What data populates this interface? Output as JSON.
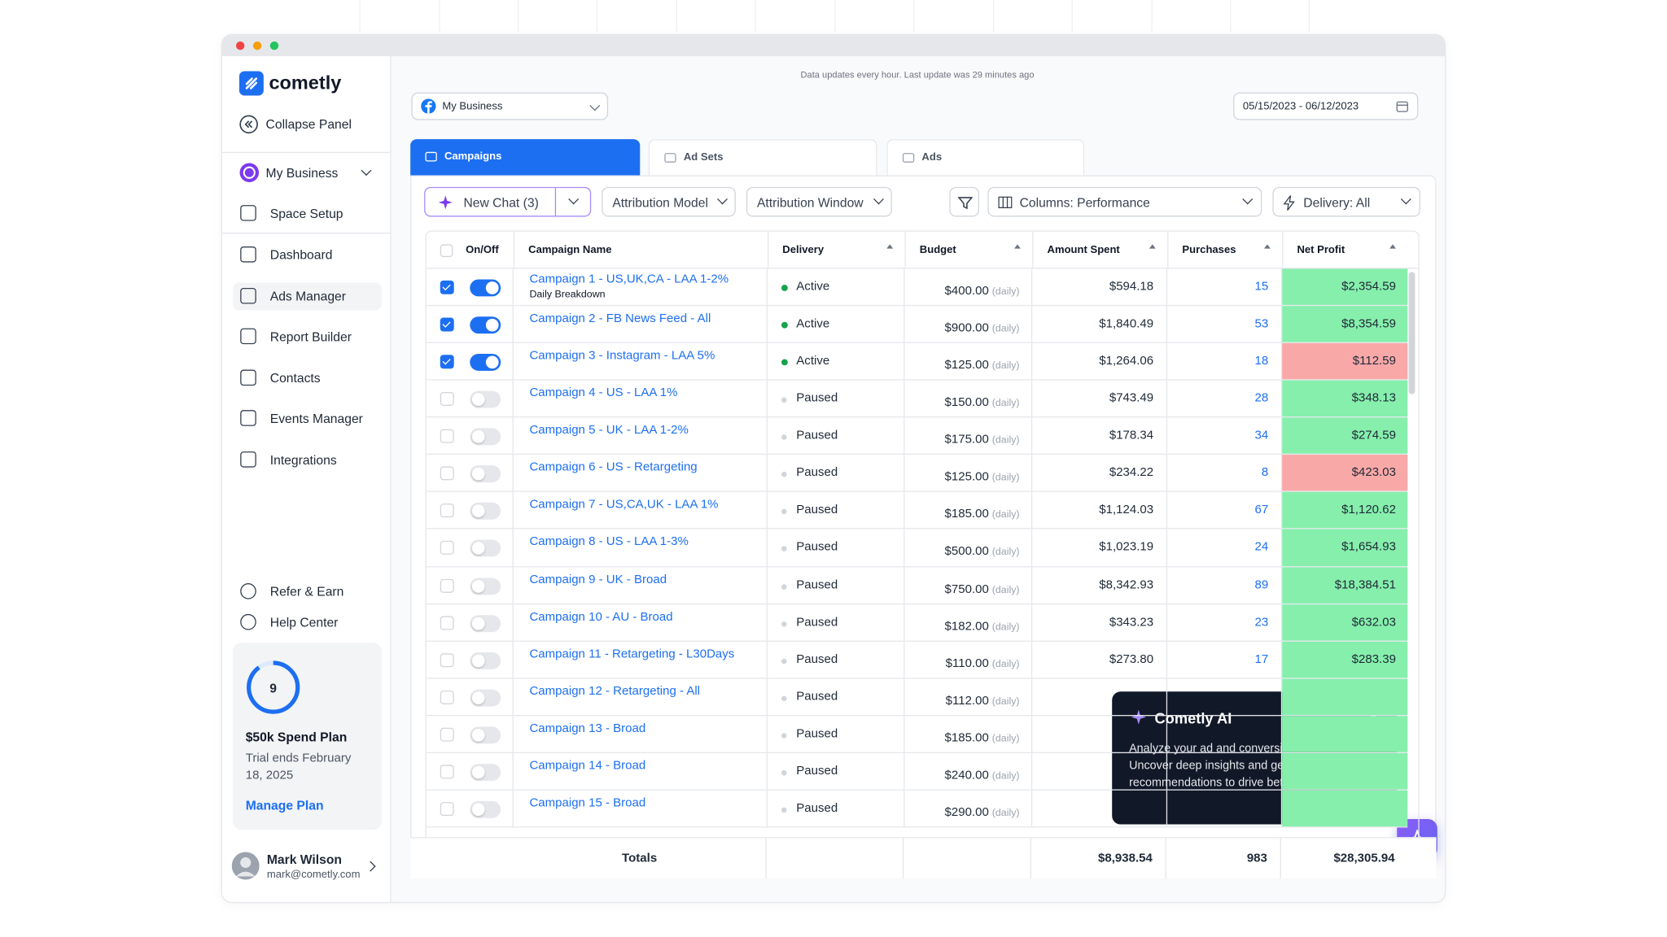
{
  "sidebar": {
    "brand": "cometly",
    "collapse": "Collapse Panel",
    "business": "My Business",
    "nav": [
      "Space Setup",
      "Dashboard",
      "Ads Manager",
      "Report Builder",
      "Contacts",
      "Events Manager",
      "Integrations"
    ],
    "active_nav": 2,
    "bottom_nav": [
      "Refer & Earn",
      "Help Center"
    ],
    "plan": {
      "count": 9,
      "title": "$50k Spend Plan",
      "note": "Trial ends February 18, 2025",
      "link": "Manage Plan"
    },
    "user": {
      "name": "Mark Wilson",
      "email": "mark@cometly.com"
    }
  },
  "header": {
    "update_note": "Data updates every hour. Last update was 29 minutes ago",
    "account": "My Business",
    "date_range": "05/15/2023 - 06/12/2023"
  },
  "tabs": {
    "items": [
      "Campaigns",
      "Ad Sets",
      "Ads"
    ],
    "active": 0
  },
  "toolbar": {
    "new_chat": "New Chat (3)",
    "filters": [
      "Attribution Model",
      "Attribution Window"
    ],
    "columns": "Columns: Performance",
    "delivery": "Delivery: All"
  },
  "table": {
    "columns": [
      "On/Off",
      "Campaign Name",
      "Delivery",
      "Budget",
      "Amount Spent",
      "Purchases",
      "Net Profit"
    ],
    "rows": [
      {
        "name": "Campaign 1 - US,UK,CA - LAA 1-2%",
        "sub": "Daily Breakdown",
        "checked": true,
        "on": true,
        "delivery": "Active",
        "budget": "$400.00",
        "budget_unit": "(daily)",
        "spent": "$594.18",
        "purchases": 15,
        "net_profit": "$2,354.59",
        "profit_status": "positive"
      },
      {
        "name": "Campaign 2 - FB News Feed - All",
        "checked": true,
        "on": true,
        "delivery": "Active",
        "budget": "$900.00",
        "budget_unit": "(daily)",
        "spent": "$1,840.49",
        "purchases": 53,
        "net_profit": "$8,354.59",
        "profit_status": "positive"
      },
      {
        "name": "Campaign 3 - Instagram - LAA 5%",
        "checked": true,
        "on": true,
        "delivery": "Active",
        "budget": "$125.00",
        "budget_unit": "(daily)",
        "spent": "$1,264.06",
        "purchases": 18,
        "net_profit": "$112.59",
        "profit_status": "negative"
      },
      {
        "name": "Campaign 4 - US - LAA 1%",
        "checked": false,
        "on": false,
        "delivery": "Paused",
        "budget": "$150.00",
        "budget_unit": "(daily)",
        "spent": "$743.49",
        "purchases": 28,
        "net_profit": "$348.13",
        "profit_status": "positive"
      },
      {
        "name": "Campaign 5 - UK - LAA 1-2%",
        "checked": false,
        "on": false,
        "delivery": "Paused",
        "budget": "$175.00",
        "budget_unit": "(daily)",
        "spent": "$178.34",
        "purchases": 34,
        "net_profit": "$274.59",
        "profit_status": "positive"
      },
      {
        "name": "Campaign 6 - US - Retargeting",
        "checked": false,
        "on": false,
        "delivery": "Paused",
        "budget": "$125.00",
        "budget_unit": "(daily)",
        "spent": "$234.22",
        "purchases": 8,
        "net_profit": "$423.03",
        "profit_status": "negative"
      },
      {
        "name": "Campaign 7 - US,CA,UK - LAA 1%",
        "checked": false,
        "on": false,
        "delivery": "Paused",
        "budget": "$185.00",
        "budget_unit": "(daily)",
        "spent": "$1,124.03",
        "purchases": 67,
        "net_profit": "$1,120.62",
        "profit_status": "positive"
      },
      {
        "name": "Campaign 8 - US - LAA 1-3%",
        "checked": false,
        "on": false,
        "delivery": "Paused",
        "budget": "$500.00",
        "budget_unit": "(daily)",
        "spent": "$1,023.19",
        "purchases": 24,
        "net_profit": "$1,654.93",
        "profit_status": "positive"
      },
      {
        "name": "Campaign 9 - UK - Broad",
        "checked": false,
        "on": false,
        "delivery": "Paused",
        "budget": "$750.00",
        "budget_unit": "(daily)",
        "spent": "$8,342.93",
        "purchases": 89,
        "net_profit": "$18,384.51",
        "profit_status": "positive"
      },
      {
        "name": "Campaign 10 - AU - Broad",
        "checked": false,
        "on": false,
        "delivery": "Paused",
        "budget": "$182.00",
        "budget_unit": "(daily)",
        "spent": "$343.23",
        "purchases": 23,
        "net_profit": "$632.03",
        "profit_status": "positive"
      },
      {
        "name": "Campaign 11 - Retargeting - L30Days",
        "checked": false,
        "on": false,
        "delivery": "Paused",
        "budget": "$110.00",
        "budget_unit": "(daily)",
        "spent": "$273.80",
        "purchases": 17,
        "net_profit": "$283.39",
        "profit_status": "positive"
      },
      {
        "name": "Campaign 12 - Retargeting - All",
        "checked": false,
        "on": false,
        "delivery": "Paused",
        "budget": "$112.00",
        "budget_unit": "(daily)",
        "profit_status": "positive"
      },
      {
        "name": "Campaign 13 - Broad",
        "checked": false,
        "on": false,
        "delivery": "Paused",
        "budget": "$185.00",
        "budget_unit": "(daily)",
        "profit_status": "positive"
      },
      {
        "name": "Campaign 14 - Broad",
        "checked": false,
        "on": false,
        "delivery": "Paused",
        "budget": "$240.00",
        "budget_unit": "(daily)",
        "profit_status": "positive"
      },
      {
        "name": "Campaign 15 - Broad",
        "checked": false,
        "on": false,
        "delivery": "Paused",
        "budget": "$290.00",
        "budget_unit": "(daily)",
        "profit_status": "positive"
      }
    ],
    "totals": {
      "label": "Totals",
      "spent": "$8,938.54",
      "purchases": 983,
      "net_profit": "$28,305.94"
    }
  },
  "popup": {
    "title": "Cometly AI",
    "body": "Analyze your ad and conversion data with AI. Uncover deep insights and get actionable recommendations to drive better ad performance."
  }
}
